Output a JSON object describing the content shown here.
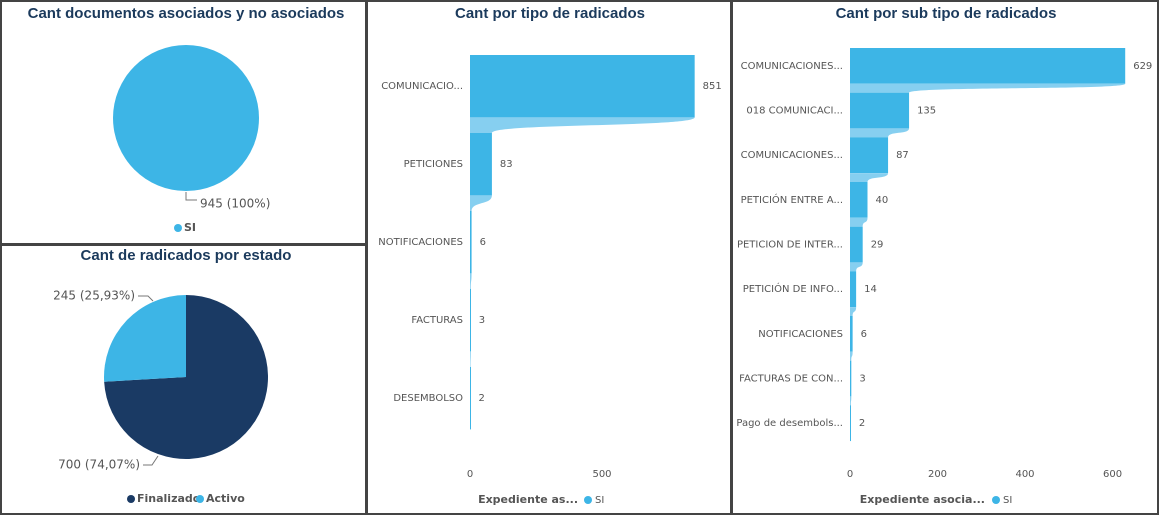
{
  "chart_data": [
    {
      "type": "pie",
      "title": "Cant documentos asociados y no asociados",
      "categories": [
        "SI"
      ],
      "values": [
        945
      ],
      "value_labels": [
        "945 (100%)"
      ],
      "colors": [
        "#3db5e6"
      ]
    },
    {
      "type": "pie",
      "title": "Cant de radicados por estado",
      "categories": [
        "Finalizado",
        "Activo"
      ],
      "values": [
        700,
        245
      ],
      "value_labels": [
        "700 (74,07%)",
        "245 (25,93%)"
      ],
      "colors": [
        "#1a3a64",
        "#3db5e6"
      ]
    },
    {
      "type": "bar",
      "orientation": "horizontal",
      "title": "Cant por tipo de radicados",
      "categories": [
        "COMUNICACIO...",
        "PETICIONES",
        "NOTIFICACIONES",
        "FACTURAS",
        "DESEMBOLSO"
      ],
      "legend_title": "Expediente as...",
      "series": [
        {
          "name": "SI",
          "color": "#3db5e6",
          "values": [
            851,
            83,
            6,
            3,
            2
          ]
        }
      ],
      "xlim": [
        0,
        900
      ],
      "xticks": [
        0,
        500
      ],
      "grid": false
    },
    {
      "type": "bar",
      "orientation": "horizontal",
      "title": "Cant por sub tipo de radicados",
      "categories": [
        "COMUNICACIONES...",
        "018 COMUNICACI...",
        "COMUNICACIONES...",
        "PETICIÓN ENTRE A...",
        "PETICION DE INTER...",
        "PETICIÓN DE INFO...",
        "NOTIFICACIONES",
        "FACTURAS DE CON...",
        "Pago de desembols..."
      ],
      "legend_title": "Expediente asocia...",
      "series": [
        {
          "name": "SI",
          "color": "#3db5e6",
          "values": [
            629,
            135,
            87,
            40,
            29,
            14,
            6,
            3,
            2
          ]
        }
      ],
      "xlim": [
        0,
        650
      ],
      "xticks": [
        0,
        200,
        400,
        600
      ],
      "grid": false
    }
  ]
}
